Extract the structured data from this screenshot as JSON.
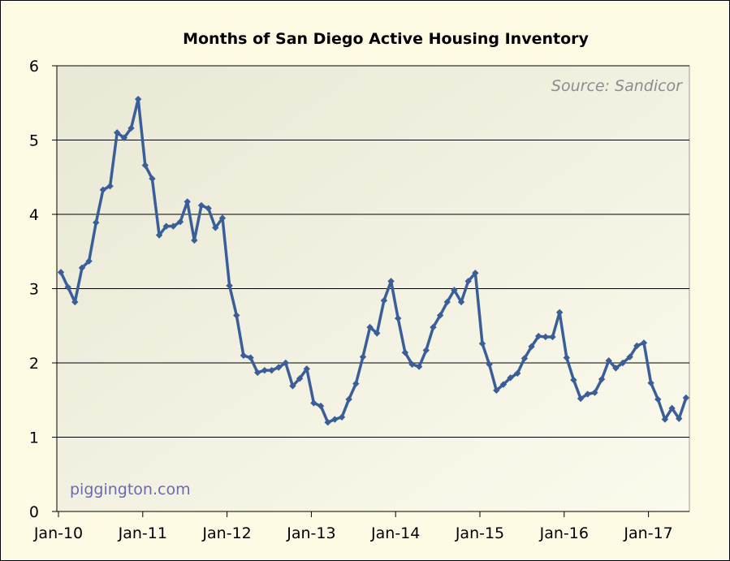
{
  "chart_data": {
    "type": "line",
    "title": "Months of San Diego Active Housing Inventory",
    "source": "Source: Sandicor",
    "watermark": "piggington.com",
    "xlabel": "",
    "ylabel": "",
    "ylim": [
      0,
      6
    ],
    "yticks": [
      "0",
      "1",
      "2",
      "3",
      "4",
      "5",
      "6"
    ],
    "xticks": [
      "Jan-10",
      "Jan-11",
      "Jan-12",
      "Jan-13",
      "Jan-14",
      "Jan-15",
      "Jan-16",
      "Jan-17"
    ],
    "grid": true,
    "line_color": "#3a5e9a",
    "series": [
      {
        "start": "2010-01",
        "values": [
          3.22,
          3.02,
          2.82,
          3.28,
          3.37,
          3.89,
          4.33,
          4.38,
          5.1,
          5.03,
          5.16,
          5.55,
          4.66,
          4.48,
          3.72,
          3.84,
          3.84,
          3.9,
          4.17,
          3.65,
          4.12,
          4.08,
          3.82,
          3.95,
          3.04,
          2.64,
          2.1,
          2.07,
          1.87,
          1.9,
          1.9,
          1.94,
          2.0,
          1.69,
          1.79,
          1.92,
          1.46,
          1.42,
          1.2,
          1.24,
          1.27,
          1.51,
          1.72,
          2.08,
          2.48,
          2.4,
          2.84,
          3.1,
          2.6,
          2.14,
          1.98,
          1.95,
          2.17,
          2.48,
          2.64,
          2.82,
          2.98,
          2.82,
          3.1,
          3.21,
          2.26,
          1.98,
          1.63,
          1.71,
          1.8,
          1.86,
          2.06,
          2.22,
          2.36,
          2.35,
          2.35,
          2.68,
          2.07,
          1.77,
          1.52,
          1.58,
          1.6,
          1.78,
          2.03,
          1.93,
          2.0,
          2.08,
          2.23,
          2.27,
          1.73,
          1.51,
          1.24,
          1.39,
          1.25,
          1.53
        ]
      }
    ]
  }
}
